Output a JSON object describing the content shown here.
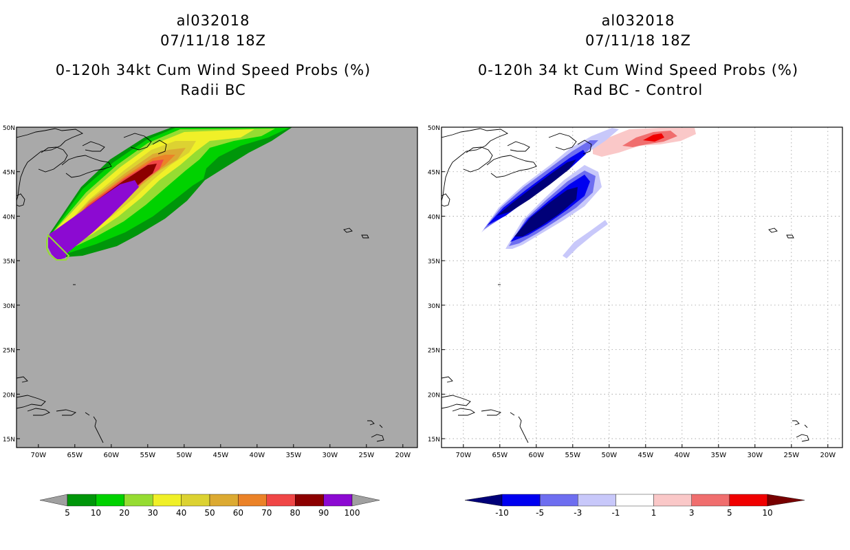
{
  "left_panel": {
    "storm_id": "al032018",
    "datetime": "07/11/18 18Z",
    "product": "0-120h 34kt Cum Wind Speed Probs (%)",
    "subtitle": "Radii BC",
    "background_color": "#a9a9a9",
    "legend": {
      "labels": [
        "5",
        "10",
        "20",
        "30",
        "40",
        "50",
        "60",
        "70",
        "80",
        "90",
        "100"
      ],
      "colors": [
        "#a0a0a0",
        "#00960a",
        "#00d200",
        "#96dc32",
        "#f0f028",
        "#dcd232",
        "#dcaa32",
        "#eb8228",
        "#f04646",
        "#8c0000",
        "#8c0ad2",
        "#a0a0a0"
      ]
    }
  },
  "right_panel": {
    "storm_id": "al032018",
    "datetime": "07/11/18 18Z",
    "product": "0-120h 34 kt Cum Wind Speed Probs (%)",
    "subtitle": "Rad BC - Control",
    "background_color": "#ffffff",
    "legend": {
      "labels": [
        "-10",
        "-5",
        "-3",
        "-1",
        "1",
        "3",
        "5",
        "10"
      ],
      "colors": [
        "#000078",
        "#0000f0",
        "#6e6ef0",
        "#c8c8fa",
        "#ffffff",
        "#fac8c8",
        "#f06e6e",
        "#f00000",
        "#780000"
      ]
    }
  },
  "map": {
    "lon_range": [
      -73,
      -18
    ],
    "lat_range": [
      14,
      50
    ],
    "lon_ticks": [
      -70,
      -65,
      -60,
      -55,
      -50,
      -45,
      -40,
      -35,
      -30,
      -25,
      -20
    ],
    "lon_labels": [
      "70W",
      "65W",
      "60W",
      "55W",
      "50W",
      "45W",
      "40W",
      "35W",
      "30W",
      "25W",
      "20W"
    ],
    "lat_ticks": [
      15,
      20,
      25,
      30,
      35,
      40,
      45,
      50
    ],
    "lat_labels": [
      "15N",
      "20N",
      "25N",
      "30N",
      "35N",
      "40N",
      "45N",
      "50N"
    ]
  }
}
